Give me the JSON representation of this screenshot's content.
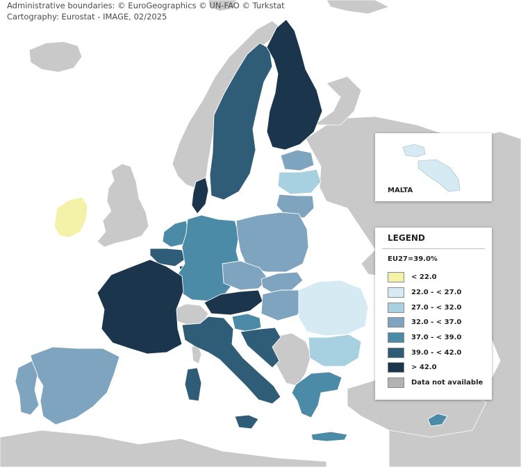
{
  "credits": {
    "line1": "Administrative boundaries: © EuroGeographics © UN-FAO © Turkstat",
    "line2": "Cartography: Eurostat - IMAGE, 02/2025"
  },
  "inset": {
    "label": "MALTA"
  },
  "legend": {
    "title": "LEGEND",
    "eu_average": "EU27=39.0%",
    "classes": [
      {
        "label": "< 22.0",
        "color": "#f4f1a9"
      },
      {
        "label": "22.0 - < 27.0",
        "color": "#d5eaf2"
      },
      {
        "label": "27.0 - < 32.0",
        "color": "#a7d0e0"
      },
      {
        "label": "32.0 - < 37.0",
        "color": "#7ea4bf"
      },
      {
        "label": "37.0 - < 39.0",
        "color": "#4b8ba8"
      },
      {
        "label": "39.0 - < 42.0",
        "color": "#2f5c77"
      },
      {
        "label": "> 42.0",
        "color": "#1a354c"
      },
      {
        "label": "Data not available",
        "color": "#b3b3b3"
      }
    ]
  },
  "colors": {
    "sea": "#ffffff",
    "non_eu_land": "#c9c9c9",
    "no_data": "#b3b3b3",
    "border": "#ffffff"
  },
  "regions": [
    {
      "name": "Ireland",
      "class": 0
    },
    {
      "name": "Romania",
      "class": 1
    },
    {
      "name": "Malta",
      "class": 1
    },
    {
      "name": "Bulgaria",
      "class": 2
    },
    {
      "name": "Latvia",
      "class": 2
    },
    {
      "name": "Lithuania",
      "class": 3
    },
    {
      "name": "Poland",
      "class": 3
    },
    {
      "name": "Czechia",
      "class": 3
    },
    {
      "name": "Slovakia",
      "class": 3
    },
    {
      "name": "Hungary",
      "class": 3
    },
    {
      "name": "Spain",
      "class": 3
    },
    {
      "name": "Portugal",
      "class": 3
    },
    {
      "name": "Estonia",
      "class": 3
    },
    {
      "name": "Germany",
      "class": 4
    },
    {
      "name": "Netherlands",
      "class": 4
    },
    {
      "name": "Slovenia",
      "class": 4
    },
    {
      "name": "Greece",
      "class": 4
    },
    {
      "name": "Cyprus",
      "class": 4
    },
    {
      "name": "Sweden",
      "class": 5
    },
    {
      "name": "Croatia",
      "class": 5
    },
    {
      "name": "Italy",
      "class": 5
    },
    {
      "name": "Belgium",
      "class": 5
    },
    {
      "name": "Finland",
      "class": 6
    },
    {
      "name": "Denmark",
      "class": 6
    },
    {
      "name": "France",
      "class": 6
    },
    {
      "name": "Austria",
      "class": 6
    },
    {
      "name": "Luxembourg",
      "class": 6
    }
  ]
}
